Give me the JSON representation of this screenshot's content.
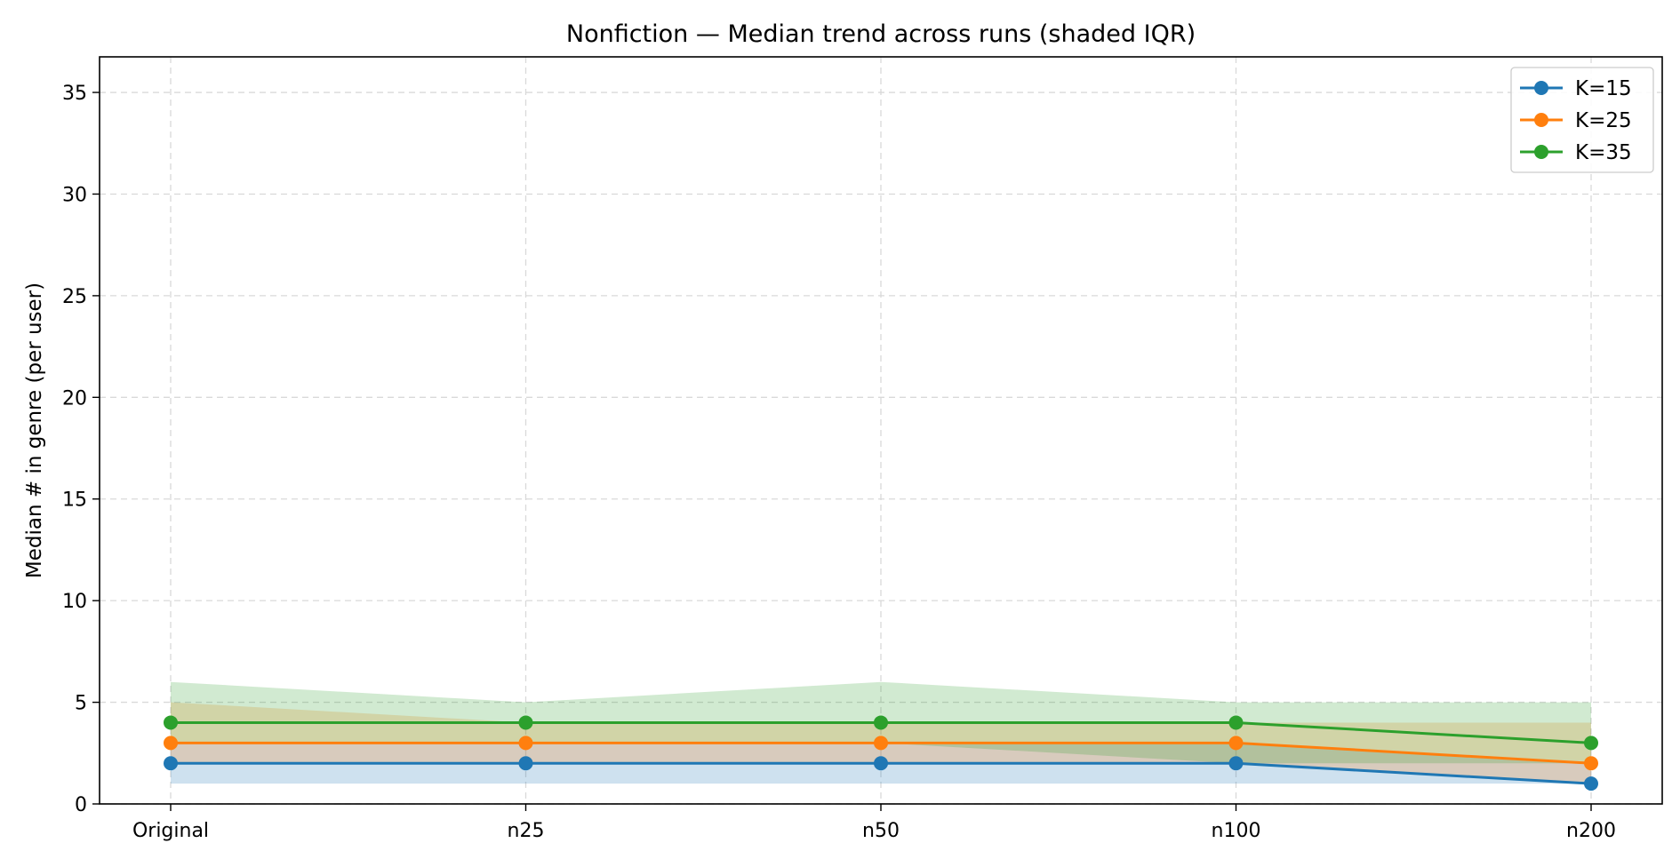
{
  "chart_data": {
    "type": "line",
    "title": "Nonfiction — Median trend across runs (shaded IQR)",
    "xlabel": "",
    "ylabel": "Median # in genre (per user)",
    "categories": [
      "Original",
      "n25",
      "n50",
      "n100",
      "n200"
    ],
    "ylim": [
      0,
      36.75
    ],
    "yticks": [
      "0",
      "5",
      "10",
      "15",
      "20",
      "25",
      "30",
      "35"
    ],
    "grid": true,
    "grid_style": "dashed",
    "legend_position": "top-right",
    "series": [
      {
        "name": "K=15",
        "color": "#1f77b4",
        "median": [
          2,
          2,
          2,
          2,
          1
        ],
        "q1": [
          1,
          1,
          1,
          1,
          1
        ],
        "q3": [
          3,
          3,
          3,
          3,
          2
        ]
      },
      {
        "name": "K=25",
        "color": "#ff7f0e",
        "median": [
          3,
          3,
          3,
          3,
          2
        ],
        "q1": [
          2,
          2,
          2,
          2,
          1
        ],
        "q3": [
          5,
          4,
          4,
          4,
          4
        ]
      },
      {
        "name": "K=35",
        "color": "#2ca02c",
        "median": [
          4,
          4,
          4,
          4,
          3
        ],
        "q1": [
          3,
          3,
          3,
          2,
          2
        ],
        "q3": [
          6,
          5,
          6,
          5,
          5
        ]
      }
    ]
  }
}
